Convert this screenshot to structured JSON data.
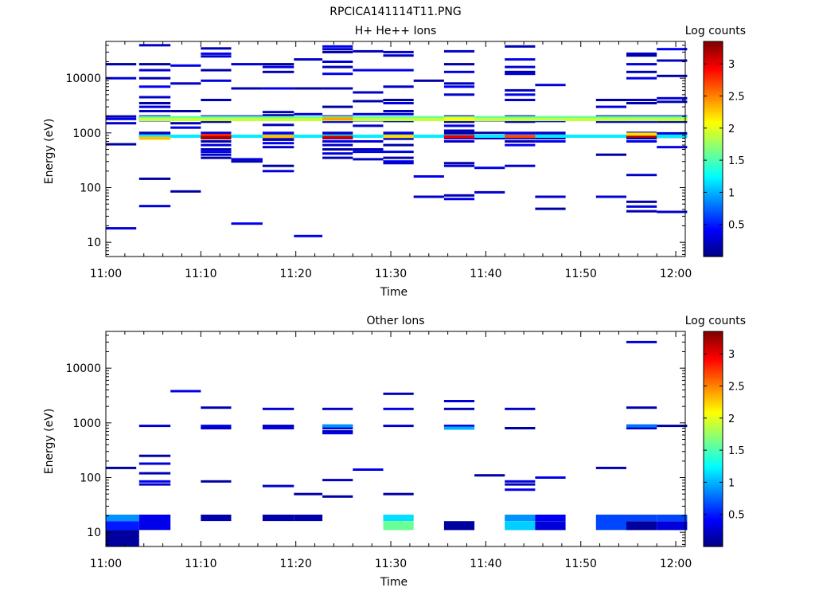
{
  "figure_title": "RPCICA141114T11.PNG",
  "chart_data": [
    {
      "type": "heatmap",
      "title": "H+ He++ Ions",
      "xlabel": "Time",
      "ylabel": "Energy (eV)",
      "x_range": [
        "11:00",
        "12:01"
      ],
      "x_ticks": [
        "11:00",
        "11:10",
        "11:20",
        "11:30",
        "11:40",
        "11:50",
        "12:00"
      ],
      "y_scale": "log",
      "y_range": [
        5.5,
        47000
      ],
      "y_ticks": [
        10,
        100,
        1000,
        10000
      ],
      "y_tick_labels": [
        "10",
        "100",
        "1000",
        "10000"
      ],
      "colorbar_label": "Log counts",
      "colorbar_range": [
        0,
        3.35
      ],
      "colorbar_ticks": [
        0.5,
        1,
        1.5,
        2,
        2.5,
        3
      ],
      "colorbar_tick_labels": [
        "0.5",
        "1",
        "1.5",
        "2",
        "2.5",
        "3"
      ],
      "grid": false,
      "cells": [
        {
          "t0": 0.0,
          "t1": 3.2,
          "e": [
            18000,
            10000,
            2000,
            1800,
            1500,
            620,
            18
          ]
        },
        {
          "t0": 3.5,
          "t1": 6.8,
          "e": [
            40000,
            18000,
            14000,
            10000,
            7000,
            4500,
            3500,
            3000,
            2500,
            2000,
            1900,
            1800,
            1700,
            1000,
            900,
            870,
            145,
            46
          ]
        },
        {
          "t0": 6.8,
          "t1": 10.0,
          "e": [
            17000,
            8000,
            2500,
            1800,
            1500,
            1250,
            870,
            85
          ]
        },
        {
          "t0": 10.0,
          "t1": 13.2,
          "e": [
            35000,
            28000,
            25000,
            14000,
            9000,
            4000,
            2000,
            1800,
            1600,
            1000,
            900,
            850,
            800,
            700,
            600,
            500,
            450,
            400,
            350
          ]
        },
        {
          "t0": 13.2,
          "t1": 16.5,
          "e": [
            18000,
            6500,
            2000,
            1800,
            870,
            330,
            300,
            22
          ]
        },
        {
          "t0": 16.5,
          "t1": 19.8,
          "e": [
            18000,
            16000,
            13000,
            6500,
            2400,
            2100,
            1800,
            1400,
            1000,
            900,
            850,
            800,
            750,
            650,
            550,
            250,
            200
          ]
        },
        {
          "t0": 19.8,
          "t1": 22.8,
          "e": [
            22000,
            6500,
            2200,
            870,
            13
          ]
        },
        {
          "t0": 22.8,
          "t1": 26.0,
          "e": [
            38000,
            34000,
            30000,
            20000,
            16000,
            12000,
            6500,
            3000,
            2000,
            1800,
            1600,
            1000,
            900,
            850,
            800,
            700,
            600,
            500,
            420,
            350
          ]
        },
        {
          "t0": 26.0,
          "t1": 29.2,
          "e": [
            31000,
            14000,
            5500,
            3800,
            2200,
            1800,
            1700,
            1350,
            870,
            700,
            500,
            450,
            330
          ]
        },
        {
          "t0": 29.2,
          "t1": 32.4,
          "e": [
            30000,
            26000,
            14000,
            7000,
            4000,
            3500,
            2500,
            2200,
            1800,
            1650,
            1000,
            900,
            850,
            780,
            600,
            450,
            350,
            300,
            280
          ]
        },
        {
          "t0": 32.4,
          "t1": 35.6,
          "e": [
            9000,
            1800,
            870,
            160,
            68
          ]
        },
        {
          "t0": 35.6,
          "t1": 38.8,
          "e": [
            31000,
            18000,
            13000,
            8000,
            7000,
            5000,
            2000,
            1800,
            1600,
            1350,
            1100,
            1000,
            900,
            850,
            800,
            700,
            280,
            250,
            72,
            62
          ]
        },
        {
          "t0": 38.8,
          "t1": 42.0,
          "e": [
            1900,
            1700,
            1000,
            870,
            800,
            230,
            82
          ]
        },
        {
          "t0": 42.0,
          "t1": 45.2,
          "e": [
            38000,
            22000,
            16000,
            13000,
            12000,
            6000,
            5000,
            4000,
            2000,
            1800,
            1600,
            1000,
            900,
            850,
            800,
            700,
            600,
            250
          ]
        },
        {
          "t0": 45.2,
          "t1": 48.4,
          "e": [
            7500,
            1800,
            1650,
            1000,
            900,
            850,
            800,
            700,
            68,
            41
          ]
        },
        {
          "t0": 51.6,
          "t1": 54.8,
          "e": [
            4000,
            3000,
            2000,
            1800,
            1600,
            400,
            68
          ]
        },
        {
          "t0": 54.8,
          "t1": 58.0,
          "e": [
            28000,
            26000,
            18000,
            13000,
            10000,
            4000,
            3500,
            2000,
            1800,
            1600,
            1000,
            900,
            850,
            800,
            700,
            170,
            55,
            45,
            37
          ]
        },
        {
          "t0": 58.0,
          "t1": 61.2,
          "e": [
            34000,
            21000,
            11000,
            4300,
            3700,
            2000,
            1800,
            1600,
            980,
            850,
            550,
            36
          ]
        }
      ],
      "hot_bands": [
        {
          "t0": 3.5,
          "t1": 61.2,
          "e": 1900,
          "v": 1.6
        },
        {
          "t0": 3.5,
          "t1": 61.2,
          "e": 1750,
          "v": 1.9
        },
        {
          "t0": 3.5,
          "t1": 61.2,
          "e": 870,
          "v": 1.2
        },
        {
          "t0": 3.5,
          "t1": 6.8,
          "e": 800,
          "v": 2.3
        },
        {
          "t0": 10.0,
          "t1": 13.2,
          "e": 900,
          "v": 2.8
        },
        {
          "t0": 10.0,
          "t1": 13.2,
          "e": 820,
          "v": 3.2
        },
        {
          "t0": 16.5,
          "t1": 19.8,
          "e": 860,
          "v": 2.3
        },
        {
          "t0": 22.8,
          "t1": 26.0,
          "e": 1800,
          "v": 2.4
        },
        {
          "t0": 22.8,
          "t1": 26.0,
          "e": 830,
          "v": 3.1
        },
        {
          "t0": 29.2,
          "t1": 32.4,
          "e": 860,
          "v": 2.2
        },
        {
          "t0": 35.6,
          "t1": 38.8,
          "e": 1800,
          "v": 2.1
        },
        {
          "t0": 35.6,
          "t1": 38.8,
          "e": 850,
          "v": 3.0
        },
        {
          "t0": 42.0,
          "t1": 45.2,
          "e": 860,
          "v": 2.7
        },
        {
          "t0": 54.8,
          "t1": 58.0,
          "e": 870,
          "v": 3.2
        },
        {
          "t0": 54.8,
          "t1": 58.0,
          "e": 950,
          "v": 2.2
        }
      ]
    },
    {
      "type": "heatmap",
      "title": "Other Ions",
      "xlabel": "Time",
      "ylabel": "Energy (eV)",
      "x_range": [
        "11:00",
        "12:01"
      ],
      "x_ticks": [
        "11:00",
        "11:10",
        "11:20",
        "11:30",
        "11:40",
        "11:50",
        "12:00"
      ],
      "y_scale": "log",
      "y_range": [
        5.5,
        47000
      ],
      "y_ticks": [
        10,
        100,
        1000,
        10000
      ],
      "y_tick_labels": [
        "10",
        "100",
        "1000",
        "10000"
      ],
      "colorbar_label": "Log counts",
      "colorbar_range": [
        0,
        3.35
      ],
      "colorbar_ticks": [
        0.5,
        1,
        1.5,
        2,
        2.5,
        3
      ],
      "colorbar_tick_labels": [
        "0.5",
        "1",
        "1.5",
        "2",
        "2.5",
        "3"
      ],
      "grid": false,
      "cells": [
        {
          "t0": 0.0,
          "t1": 3.2,
          "e": [
            150
          ]
        },
        {
          "t0": 3.5,
          "t1": 6.8,
          "e": [
            880,
            250,
            180,
            120,
            85,
            75
          ]
        },
        {
          "t0": 6.8,
          "t1": 10.0,
          "e": [
            3800
          ]
        },
        {
          "t0": 10.0,
          "t1": 13.2,
          "e": [
            1900,
            880,
            800,
            85
          ]
        },
        {
          "t0": 16.5,
          "t1": 19.8,
          "e": [
            1800,
            880,
            800,
            70
          ]
        },
        {
          "t0": 19.8,
          "t1": 22.8,
          "e": [
            50
          ]
        },
        {
          "t0": 22.8,
          "t1": 26.0,
          "e": [
            1800,
            880,
            800,
            700,
            650,
            90,
            45
          ]
        },
        {
          "t0": 26.0,
          "t1": 29.2,
          "e": [
            140
          ]
        },
        {
          "t0": 29.2,
          "t1": 32.4,
          "e": [
            3400,
            1800,
            880,
            50
          ]
        },
        {
          "t0": 35.6,
          "t1": 38.8,
          "e": [
            2500,
            1800,
            880
          ]
        },
        {
          "t0": 38.8,
          "t1": 42.0,
          "e": [
            110
          ]
        },
        {
          "t0": 42.0,
          "t1": 45.2,
          "e": [
            1800,
            800,
            85,
            75,
            60
          ]
        },
        {
          "t0": 45.2,
          "t1": 48.4,
          "e": [
            100
          ]
        },
        {
          "t0": 51.6,
          "t1": 54.8,
          "e": [
            150
          ]
        },
        {
          "t0": 54.8,
          "t1": 58.0,
          "e": [
            30000,
            1900,
            880,
            800
          ]
        },
        {
          "t0": 58.0,
          "t1": 61.2,
          "e": [
            880
          ]
        }
      ],
      "hot_bands": [
        {
          "t0": 22.8,
          "t1": 26.0,
          "e": 880,
          "v": 0.9
        },
        {
          "t0": 35.6,
          "t1": 38.8,
          "e": 800,
          "v": 1.0
        },
        {
          "t0": 54.8,
          "t1": 58.0,
          "e": 880,
          "v": 0.8
        }
      ],
      "blocks": [
        {
          "t0": 0.0,
          "t1": 3.5,
          "e0": 16,
          "e1": 21,
          "v": 0.9
        },
        {
          "t0": 0.0,
          "t1": 3.5,
          "e0": 11,
          "e1": 16,
          "v": 0.5
        },
        {
          "t0": 0.0,
          "t1": 3.5,
          "e0": 5.5,
          "e1": 11,
          "v": 0.1
        },
        {
          "t0": 3.5,
          "t1": 6.8,
          "e0": 11,
          "e1": 21,
          "v": 0.35
        },
        {
          "t0": 10.0,
          "t1": 13.2,
          "e0": 16,
          "e1": 21,
          "v": 0.15
        },
        {
          "t0": 16.5,
          "t1": 19.8,
          "e0": 16,
          "e1": 21,
          "v": 0.15
        },
        {
          "t0": 19.8,
          "t1": 22.8,
          "e0": 16,
          "e1": 21,
          "v": 0.15
        },
        {
          "t0": 29.2,
          "t1": 32.4,
          "e0": 16,
          "e1": 21,
          "v": 1.15
        },
        {
          "t0": 29.2,
          "t1": 32.4,
          "e0": 11,
          "e1": 16,
          "v": 1.6
        },
        {
          "t0": 35.6,
          "t1": 38.8,
          "e0": 11,
          "e1": 16,
          "v": 0.1
        },
        {
          "t0": 42.0,
          "t1": 45.2,
          "e0": 16,
          "e1": 21,
          "v": 0.9
        },
        {
          "t0": 42.0,
          "t1": 45.2,
          "e0": 11,
          "e1": 16,
          "v": 1.1
        },
        {
          "t0": 45.2,
          "t1": 48.4,
          "e0": 16,
          "e1": 21,
          "v": 0.4
        },
        {
          "t0": 45.2,
          "t1": 48.4,
          "e0": 11,
          "e1": 16,
          "v": 0.3
        },
        {
          "t0": 51.6,
          "t1": 54.8,
          "e0": 11,
          "e1": 21,
          "v": 0.65
        },
        {
          "t0": 54.8,
          "t1": 58.0,
          "e0": 16,
          "e1": 21,
          "v": 0.65
        },
        {
          "t0": 54.8,
          "t1": 58.0,
          "e0": 11,
          "e1": 16,
          "v": 0.1
        },
        {
          "t0": 58.0,
          "t1": 61.2,
          "e0": 16,
          "e1": 21,
          "v": 0.65
        },
        {
          "t0": 58.0,
          "t1": 61.2,
          "e0": 11,
          "e1": 16,
          "v": 0.3
        }
      ]
    }
  ]
}
